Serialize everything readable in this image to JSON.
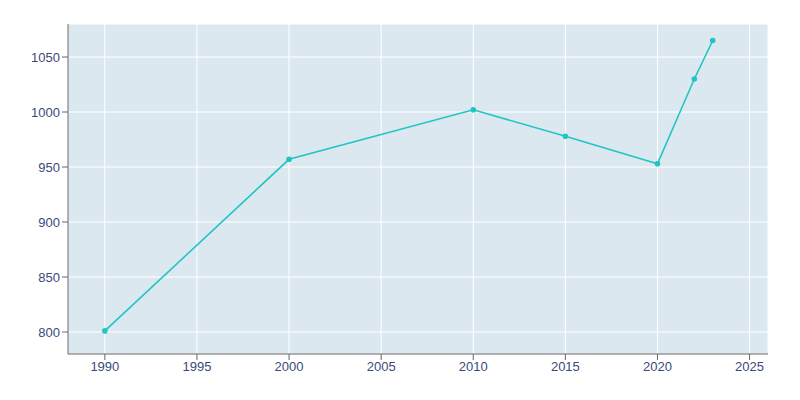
{
  "chart_data": {
    "type": "line",
    "x": [
      1990,
      2000,
      2010,
      2015,
      2020,
      2022,
      2023
    ],
    "values": [
      801,
      957,
      1002,
      978,
      953,
      1030,
      1065
    ],
    "color": "#22c4c4",
    "marker": "circle",
    "xlim": [
      1988,
      2026
    ],
    "ylim": [
      780,
      1080
    ],
    "xticks": [
      1990,
      1995,
      2000,
      2005,
      2010,
      2015,
      2020,
      2025
    ],
    "yticks": [
      800,
      850,
      900,
      950,
      1000,
      1050
    ],
    "grid": true
  }
}
